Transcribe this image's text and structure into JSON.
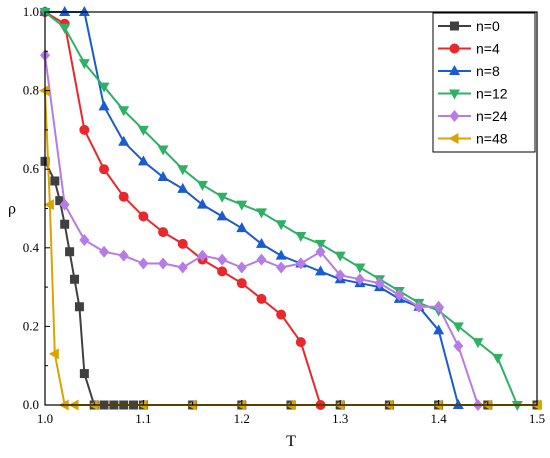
{
  "chart_data": {
    "type": "line",
    "title": "",
    "xlabel": "T",
    "ylabel": "ρ",
    "xlim": [
      1.0,
      1.5
    ],
    "ylim": [
      0.0,
      1.0
    ],
    "xticks": [
      "1.0",
      "1.1",
      "1.2",
      "1.3",
      "1.4",
      "1.5"
    ],
    "yticks": [
      "0.0",
      "0.2",
      "0.4",
      "0.6",
      "0.8",
      "1.0"
    ],
    "grid": false,
    "legend_position": "top-right",
    "series": [
      {
        "name": "n=0",
        "color": "#404040",
        "marker": "square",
        "x": [
          1.0,
          1.01,
          1.015,
          1.02,
          1.025,
          1.03,
          1.035,
          1.04,
          1.05,
          1.06,
          1.07,
          1.08,
          1.09,
          1.1,
          1.15,
          1.2,
          1.25,
          1.3,
          1.35,
          1.4,
          1.45,
          1.5
        ],
        "y": [
          0.62,
          0.57,
          0.52,
          0.46,
          0.39,
          0.32,
          0.25,
          0.08,
          0.0,
          0.0,
          0.0,
          0.0,
          0.0,
          0.0,
          0.0,
          0.0,
          0.0,
          0.0,
          0.0,
          0.0,
          0.0,
          0.0
        ]
      },
      {
        "name": "n=4",
        "color": "#e8282b",
        "marker": "circle",
        "x": [
          1.0,
          1.02,
          1.04,
          1.06,
          1.08,
          1.1,
          1.12,
          1.14,
          1.16,
          1.18,
          1.2,
          1.22,
          1.24,
          1.26,
          1.28
        ],
        "y": [
          1.0,
          0.97,
          0.7,
          0.6,
          0.53,
          0.48,
          0.44,
          0.41,
          0.37,
          0.34,
          0.31,
          0.27,
          0.23,
          0.16,
          0.0
        ]
      },
      {
        "name": "n=8",
        "color": "#1a5bcf",
        "marker": "triangle-up",
        "x": [
          1.0,
          1.02,
          1.04,
          1.06,
          1.08,
          1.1,
          1.12,
          1.14,
          1.16,
          1.18,
          1.2,
          1.22,
          1.24,
          1.26,
          1.28,
          1.3,
          1.32,
          1.34,
          1.36,
          1.38,
          1.4,
          1.42
        ],
        "y": [
          1.0,
          1.0,
          1.0,
          0.76,
          0.67,
          0.62,
          0.58,
          0.55,
          0.51,
          0.48,
          0.45,
          0.41,
          0.38,
          0.36,
          0.34,
          0.32,
          0.31,
          0.3,
          0.27,
          0.25,
          0.19,
          0.0
        ]
      },
      {
        "name": "n=12",
        "color": "#2fb065",
        "marker": "triangle-down",
        "x": [
          1.0,
          1.02,
          1.04,
          1.06,
          1.08,
          1.1,
          1.12,
          1.14,
          1.16,
          1.18,
          1.2,
          1.22,
          1.24,
          1.26,
          1.28,
          1.3,
          1.32,
          1.34,
          1.36,
          1.38,
          1.4,
          1.42,
          1.44,
          1.46,
          1.48
        ],
        "y": [
          1.0,
          0.96,
          0.87,
          0.81,
          0.75,
          0.7,
          0.65,
          0.6,
          0.56,
          0.53,
          0.51,
          0.49,
          0.46,
          0.43,
          0.41,
          0.38,
          0.35,
          0.32,
          0.29,
          0.26,
          0.24,
          0.2,
          0.16,
          0.12,
          0.0
        ]
      },
      {
        "name": "n=24",
        "color": "#b57be6",
        "marker": "diamond",
        "x": [
          1.0,
          1.02,
          1.04,
          1.06,
          1.08,
          1.1,
          1.12,
          1.14,
          1.16,
          1.18,
          1.2,
          1.22,
          1.24,
          1.26,
          1.28,
          1.3,
          1.32,
          1.34,
          1.36,
          1.38,
          1.4,
          1.42,
          1.44
        ],
        "y": [
          0.89,
          0.51,
          0.42,
          0.39,
          0.38,
          0.36,
          0.36,
          0.35,
          0.38,
          0.37,
          0.35,
          0.37,
          0.35,
          0.36,
          0.39,
          0.33,
          0.32,
          0.31,
          0.28,
          0.25,
          0.25,
          0.15,
          0.0
        ]
      },
      {
        "name": "n=48",
        "color": "#d9a400",
        "marker": "triangle-left",
        "x": [
          1.0,
          1.005,
          1.01,
          1.02,
          1.03,
          1.05,
          1.1,
          1.15,
          1.2,
          1.25,
          1.3,
          1.35,
          1.4,
          1.45,
          1.5
        ],
        "y": [
          0.8,
          0.51,
          0.13,
          0.0,
          0.0,
          0.0,
          0.0,
          0.0,
          0.0,
          0.0,
          0.0,
          0.0,
          0.0,
          0.0,
          0.0
        ]
      }
    ]
  }
}
